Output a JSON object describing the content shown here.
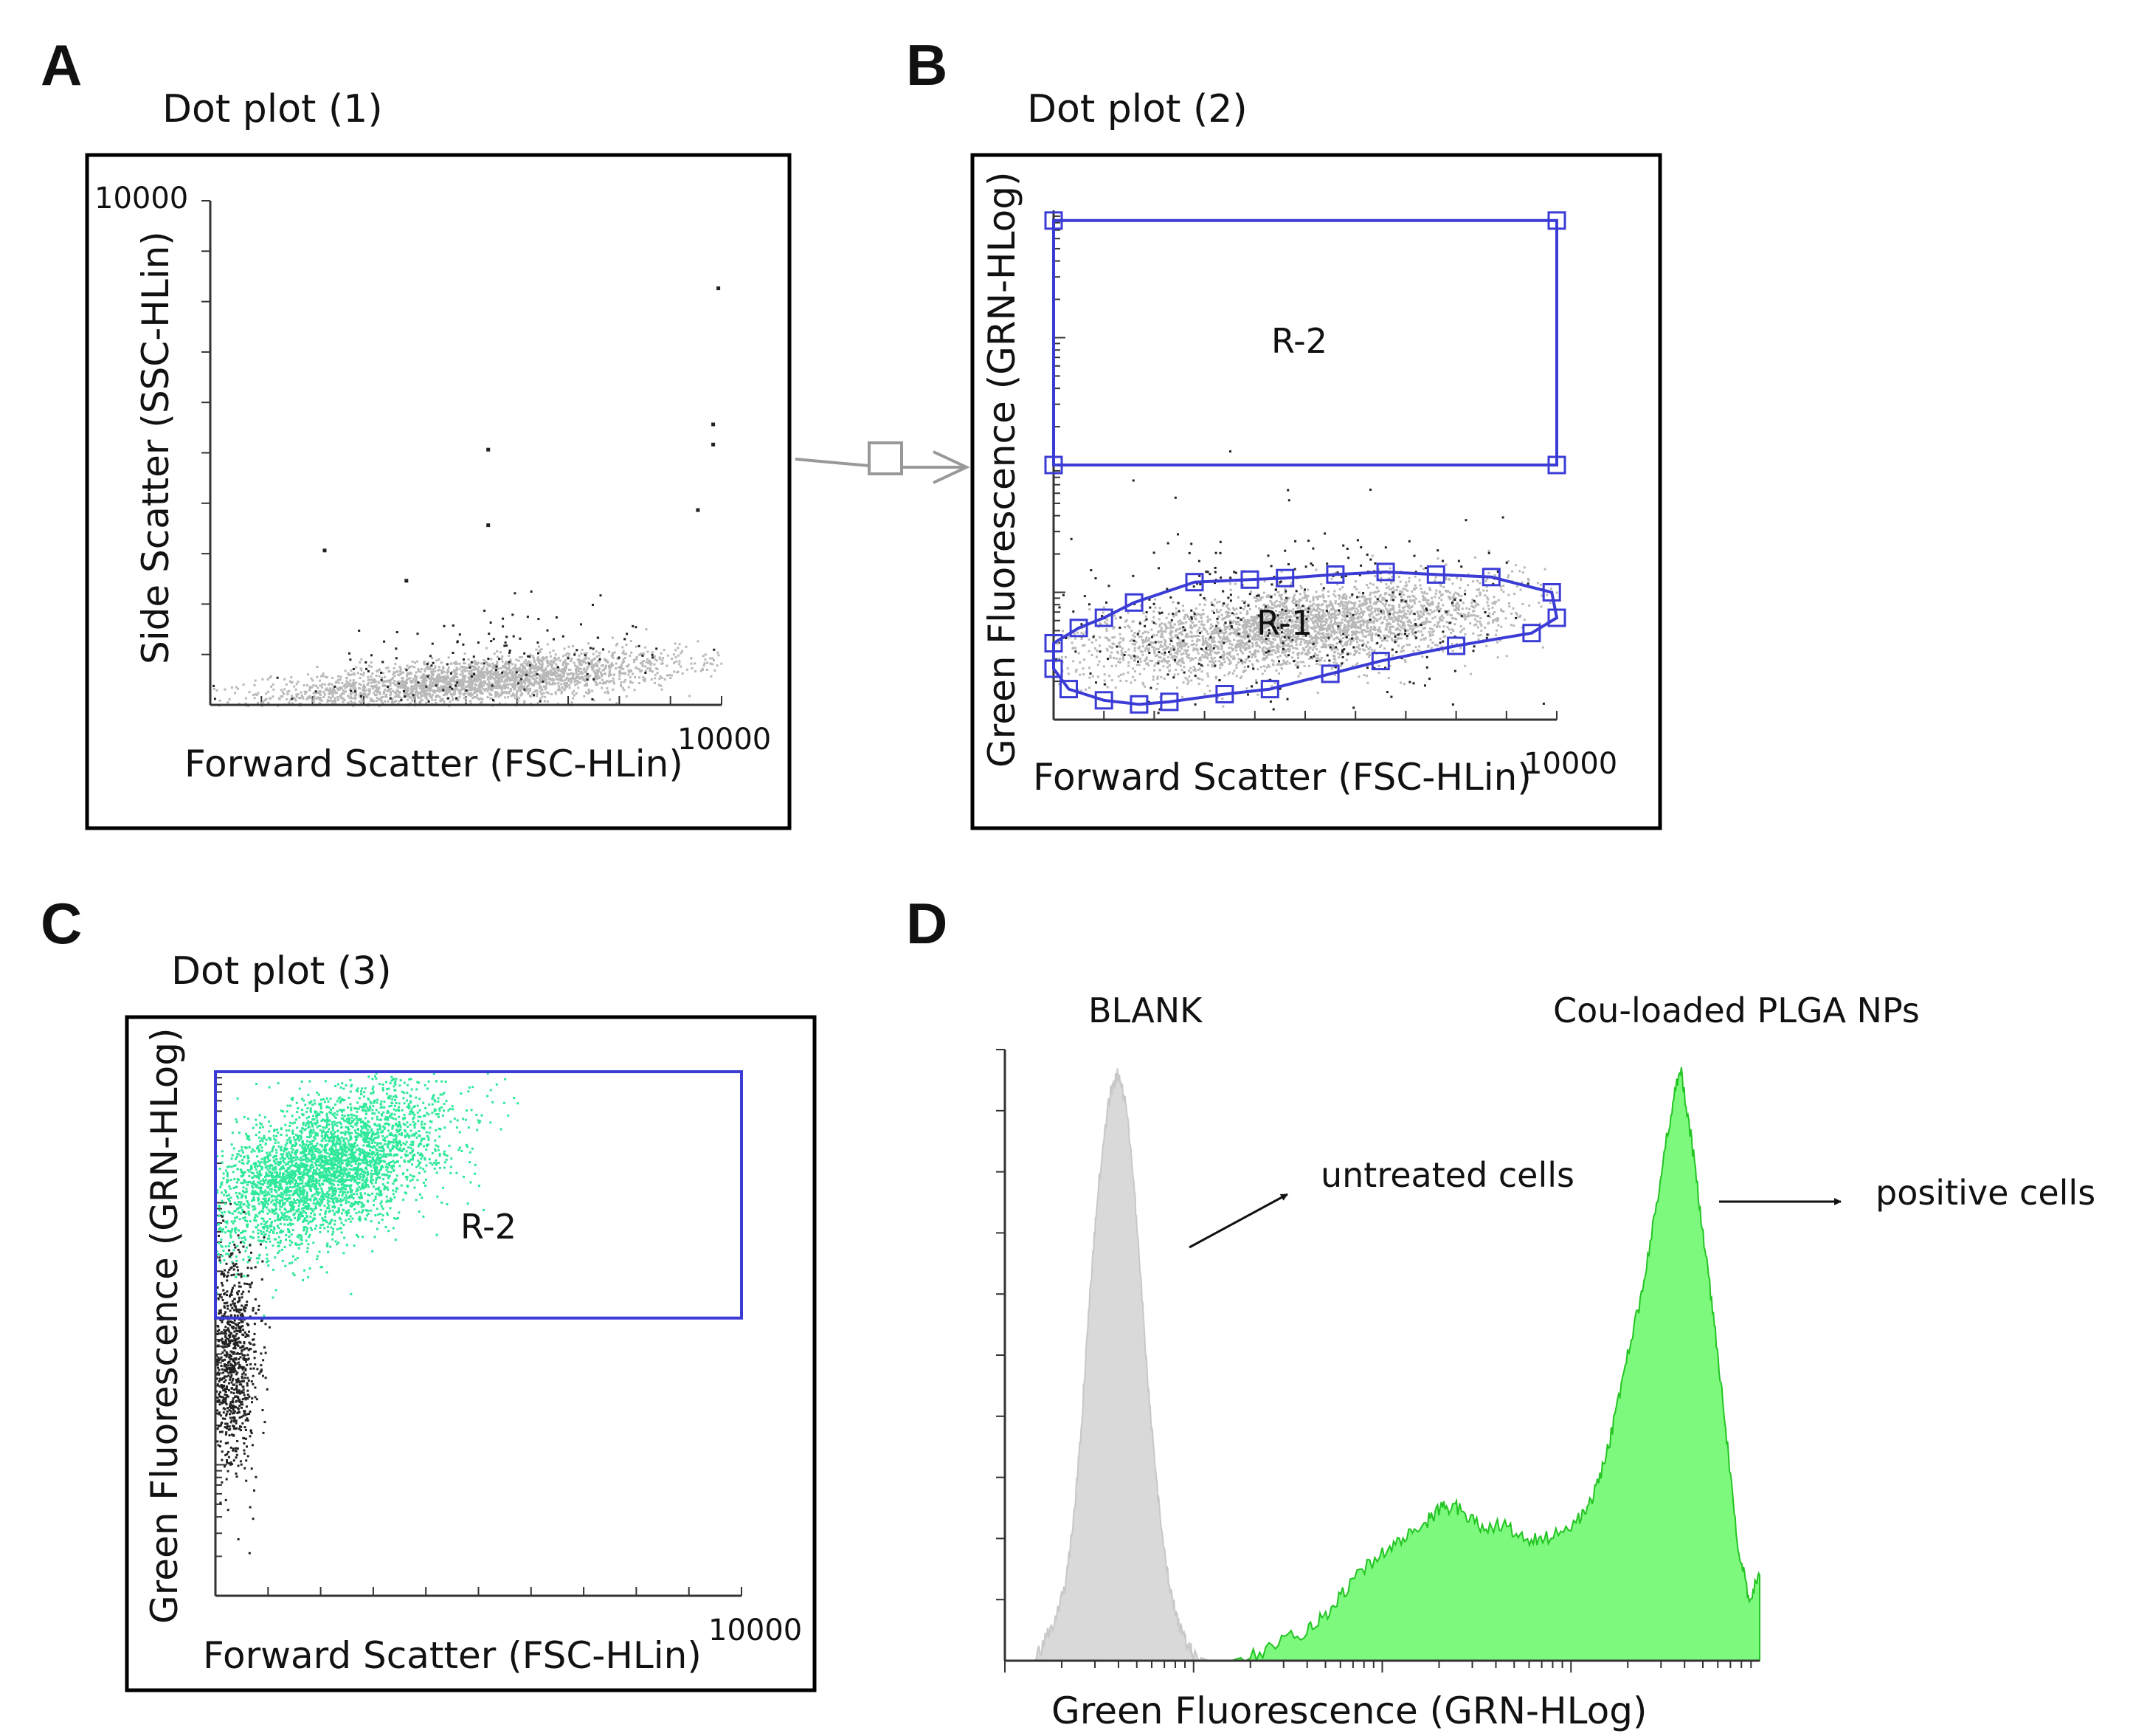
{
  "colors": {
    "frame": "#000000",
    "gate": "#3b3bd6",
    "gray_events": "#b8b8b8",
    "dark_events": "#222222",
    "green_events": "#2ee89a",
    "blank_fill": "#d9d9d9",
    "np_fill": "#7dfa7d",
    "np_line": "#23c423"
  },
  "panels": [
    {
      "id": "A",
      "letter": "A",
      "title": "Dot plot (1)",
      "xlabel": "Forward Scatter (FSC-HLin)",
      "ylabel": "Side Scatter (SSC-HLin)",
      "x_max_label": "10000",
      "y_max_label": "10000"
    },
    {
      "id": "B",
      "letter": "B",
      "title": "Dot plot (2)",
      "xlabel": "Forward Scatter (FSC-HLin)",
      "ylabel": "Green Fluorescence (GRN-HLog)",
      "x_max_label": "10000",
      "regions": [
        "R-2",
        "R-1"
      ]
    },
    {
      "id": "C",
      "letter": "C",
      "title": "Dot plot (3)",
      "xlabel": "Forward Scatter (FSC-HLin)",
      "ylabel": "Green Fluorescence (GRN-HLog)",
      "x_max_label": "10000",
      "regions": [
        "R-2"
      ]
    },
    {
      "id": "D",
      "letter": "D",
      "xlabel": "Green Fluorescence (GRN-HLog)",
      "labels": {
        "blank": "BLANK",
        "np": "Cou-loaded PLGA NPs",
        "untreated": "untreated cells",
        "positive": "positive cells"
      }
    }
  ],
  "chart_data": [
    {
      "type": "scatter",
      "panel": "A",
      "title": "Dot plot (1)",
      "xlabel": "Forward Scatter (FSC-HLin)",
      "ylabel": "Side Scatter (SSC-HLin)",
      "xlim": [
        0,
        10000
      ],
      "ylim": [
        0,
        10000
      ],
      "series": [
        {
          "name": "",
          "color": "#b8b8b8",
          "kind": "cloud",
          "count": 2600,
          "cx": 5200,
          "cy": 500,
          "sx": 2000,
          "sy": 220,
          "tilt": 0.08
        },
        {
          "name": "",
          "color": "#222222",
          "kind": "cloud",
          "count": 160,
          "cx": 5500,
          "cy": 900,
          "sx": 2600,
          "sy": 500,
          "tilt": 0.12
        }
      ],
      "outliers": [
        [
          9900,
          8300
        ],
        [
          9800,
          5600
        ],
        [
          9800,
          5200
        ],
        [
          5400,
          5100
        ],
        [
          5400,
          3600
        ],
        [
          2200,
          3100
        ],
        [
          3800,
          2500
        ],
        [
          9500,
          3900
        ]
      ]
    },
    {
      "type": "scatter",
      "panel": "B",
      "title": "Dot plot (2)",
      "xlabel": "Forward Scatter (FSC-HLin)",
      "ylabel": "Green Fluorescence (GRN-HLog)",
      "xlim": [
        0,
        10000
      ],
      "ylim": [
        0,
        10000
      ],
      "series": [
        {
          "name": "",
          "color": "#b8b8b8",
          "kind": "cloud",
          "count": 3200,
          "cx": 4800,
          "cy": 1800,
          "sx": 2100,
          "sy": 380,
          "tilt": 0.12
        },
        {
          "name": "",
          "color": "#222222",
          "kind": "cloud",
          "count": 380,
          "cx": 4600,
          "cy": 2000,
          "sx": 2600,
          "sy": 900,
          "tilt": 0.1
        }
      ],
      "gates": [
        {
          "name": "R-2",
          "shape": "rect",
          "x": [
            0,
            10000
          ],
          "y": [
            5000,
            9800
          ]
        },
        {
          "name": "R-1",
          "shape": "polygon",
          "points": [
            [
              0,
              1500
            ],
            [
              500,
              1800
            ],
            [
              1000,
              2000
            ],
            [
              1600,
              2300
            ],
            [
              2800,
              2700
            ],
            [
              3900,
              2750
            ],
            [
              4600,
              2780
            ],
            [
              5600,
              2850
            ],
            [
              6600,
              2900
            ],
            [
              7600,
              2850
            ],
            [
              8700,
              2800
            ],
            [
              9900,
              2500
            ],
            [
              10000,
              2000
            ],
            [
              9500,
              1700
            ],
            [
              8000,
              1450
            ],
            [
              6500,
              1150
            ],
            [
              5500,
              900
            ],
            [
              4300,
              600
            ],
            [
              3400,
              500
            ],
            [
              2300,
              350
            ],
            [
              1700,
              300
            ],
            [
              1000,
              380
            ],
            [
              300,
              600
            ],
            [
              0,
              1000
            ]
          ]
        }
      ]
    },
    {
      "type": "scatter",
      "panel": "C",
      "title": "Dot plot (3)",
      "xlabel": "Forward Scatter (FSC-HLin)",
      "ylabel": "Green Fluorescence (GRN-HLog)",
      "xlim": [
        0,
        10000
      ],
      "ylim": [
        0,
        10000
      ],
      "series": [
        {
          "name": "",
          "color": "#2ee89a",
          "kind": "cloud",
          "count": 3600,
          "cx": 2100,
          "cy": 8200,
          "sx": 1100,
          "sy": 650,
          "tilt": 0.35
        },
        {
          "name": "",
          "color": "#222222",
          "kind": "cloud",
          "count": 900,
          "cx": 300,
          "cy": 4500,
          "sx": 250,
          "sy": 1000,
          "tilt": 0
        }
      ],
      "gates": [
        {
          "name": "R-2",
          "shape": "rect",
          "x": [
            0,
            10000
          ],
          "y": [
            5300,
            10000
          ]
        }
      ]
    },
    {
      "type": "area",
      "panel": "D",
      "xlabel": "Green Fluorescence (GRN-HLog)",
      "xlim": [
        0,
        1
      ],
      "ylim": [
        0,
        1
      ],
      "series": [
        {
          "name": "BLANK",
          "color": "#d9d9d9",
          "x": [
            0.0,
            0.04,
            0.06,
            0.08,
            0.09,
            0.1,
            0.11,
            0.12,
            0.13,
            0.14,
            0.15,
            0.16,
            0.17,
            0.18,
            0.19,
            0.2,
            0.21,
            0.22,
            0.23,
            0.24,
            0.25,
            0.27,
            0.3
          ],
          "y": [
            0.0,
            0.0,
            0.05,
            0.12,
            0.22,
            0.36,
            0.55,
            0.72,
            0.85,
            0.93,
            0.96,
            0.91,
            0.8,
            0.62,
            0.45,
            0.3,
            0.19,
            0.11,
            0.06,
            0.03,
            0.01,
            0.0,
            0.0
          ]
        },
        {
          "name": "Cou-loaded PLGA NPs",
          "color": "#7dfa7d",
          "x": [
            0.3,
            0.35,
            0.4,
            0.43,
            0.46,
            0.5,
            0.53,
            0.56,
            0.58,
            0.6,
            0.63,
            0.66,
            0.69,
            0.72,
            0.76,
            0.78,
            0.8,
            0.82,
            0.84,
            0.86,
            0.88,
            0.895,
            0.91,
            0.925,
            0.94,
            0.955,
            0.97,
            0.985,
            1.0
          ],
          "y": [
            0.0,
            0.02,
            0.05,
            0.08,
            0.13,
            0.18,
            0.2,
            0.23,
            0.25,
            0.25,
            0.22,
            0.22,
            0.2,
            0.2,
            0.23,
            0.27,
            0.35,
            0.47,
            0.58,
            0.72,
            0.88,
            0.97,
            0.85,
            0.7,
            0.55,
            0.38,
            0.2,
            0.1,
            0.14
          ]
        }
      ]
    }
  ]
}
